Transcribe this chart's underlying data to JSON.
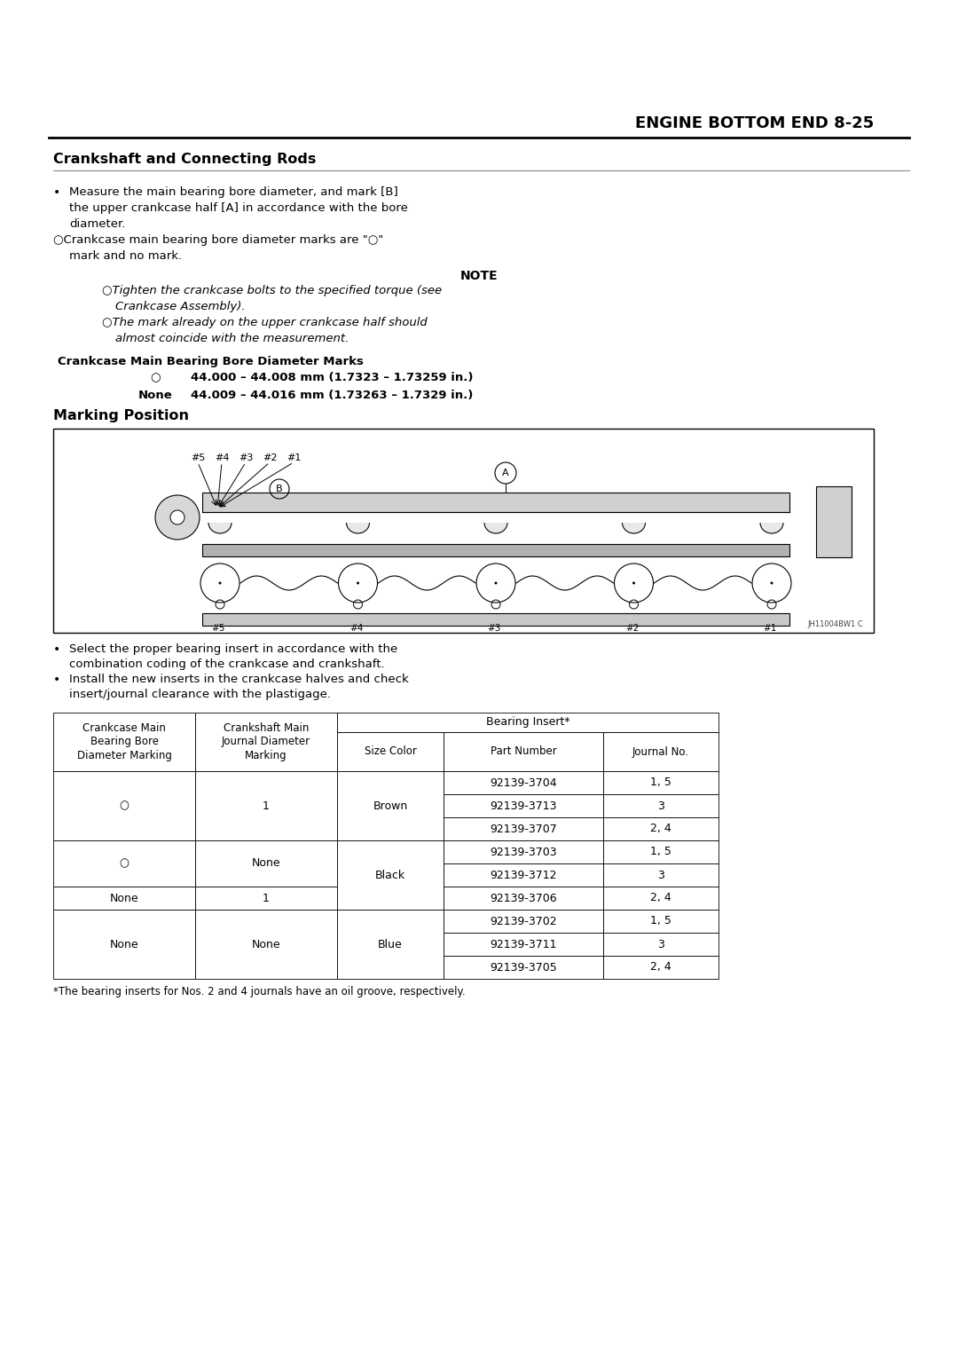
{
  "title": "ENGINE BOTTOM END 8-25",
  "section_title": "Crankshaft and Connecting Rods",
  "section_title2": "Marking Position",
  "bg_color": "#ffffff",
  "body_text": [
    [
      "•",
      "Measure the main bearing bore diameter, and mark [B]"
    ],
    [
      "",
      "the upper crankcase half [A] in accordance with the bore"
    ],
    [
      "",
      "diameter."
    ],
    [
      "○",
      "Crankcase main bearing bore diameter marks are \"○\""
    ],
    [
      "",
      "mark and no mark."
    ]
  ],
  "note_title": "NOTE",
  "note_lines": [
    [
      "○",
      "Tighten the crankcase bolts to the specified torque (see"
    ],
    [
      "",
      "Crankcase Assembly)."
    ],
    [
      "○",
      "The mark already on the upper crankcase half should"
    ],
    [
      "",
      "almost coincide with the measurement."
    ]
  ],
  "bore_title": "Crankcase Main Bearing Bore Diameter Marks",
  "bore_rows": [
    [
      "○",
      "44.000 – 44.008 mm (1.7323 – 1.73259 in.)"
    ],
    [
      "None",
      "44.009 – 44.016 mm (1.73263 – 1.7329 in.)"
    ]
  ],
  "bullet2": [
    [
      "•",
      "Select the proper bearing insert in accordance with the"
    ],
    [
      "",
      "combination coding of the crankcase and crankshaft."
    ],
    [
      "•",
      "Install the new inserts in the crankcase halves and check"
    ],
    [
      "",
      "insert/journal clearance with the plastigage."
    ]
  ],
  "table_col_headers": [
    "Crankcase Main\nBearing Bore\nDiameter Marking",
    "Crankshaft Main\nJournal Diameter\nMarking",
    "Size Color",
    "Part Number",
    "Journal No."
  ],
  "table_rows": [
    [
      "○",
      "1",
      "Brown",
      "92139-3704",
      "1, 5"
    ],
    [
      "○",
      "1",
      "Brown",
      "92139-3713",
      "3"
    ],
    [
      "○",
      "1",
      "Brown",
      "92139-3707",
      "2, 4"
    ],
    [
      "○",
      "None",
      "Black",
      "92139-3703",
      "1, 5"
    ],
    [
      "○",
      "None",
      "Black",
      "92139-3712",
      "3"
    ],
    [
      "None",
      "1",
      "Black",
      "92139-3706",
      "2, 4"
    ],
    [
      "None",
      "None",
      "Blue",
      "92139-3702",
      "1, 5"
    ],
    [
      "None",
      "None",
      "Blue",
      "92139-3711",
      "3"
    ],
    [
      "None",
      "None",
      "Blue",
      "92139-3705",
      "2, 4"
    ]
  ],
  "footnote": "*The bearing inserts for Nos. 2 and 4 journals have an oil groove, respectively.",
  "bearing_header": "Bearing Insert*",
  "col0_groups": [
    [
      0,
      3,
      "○"
    ],
    [
      3,
      5,
      "○"
    ],
    [
      5,
      6,
      "None"
    ],
    [
      6,
      9,
      "None"
    ]
  ],
  "col1_groups": [
    [
      0,
      3,
      "1"
    ],
    [
      3,
      5,
      "None"
    ],
    [
      5,
      6,
      "1"
    ],
    [
      6,
      9,
      "None"
    ]
  ],
  "col2_groups": [
    [
      0,
      3,
      "Brown"
    ],
    [
      3,
      6,
      "Black"
    ],
    [
      6,
      9,
      "Blue"
    ]
  ]
}
